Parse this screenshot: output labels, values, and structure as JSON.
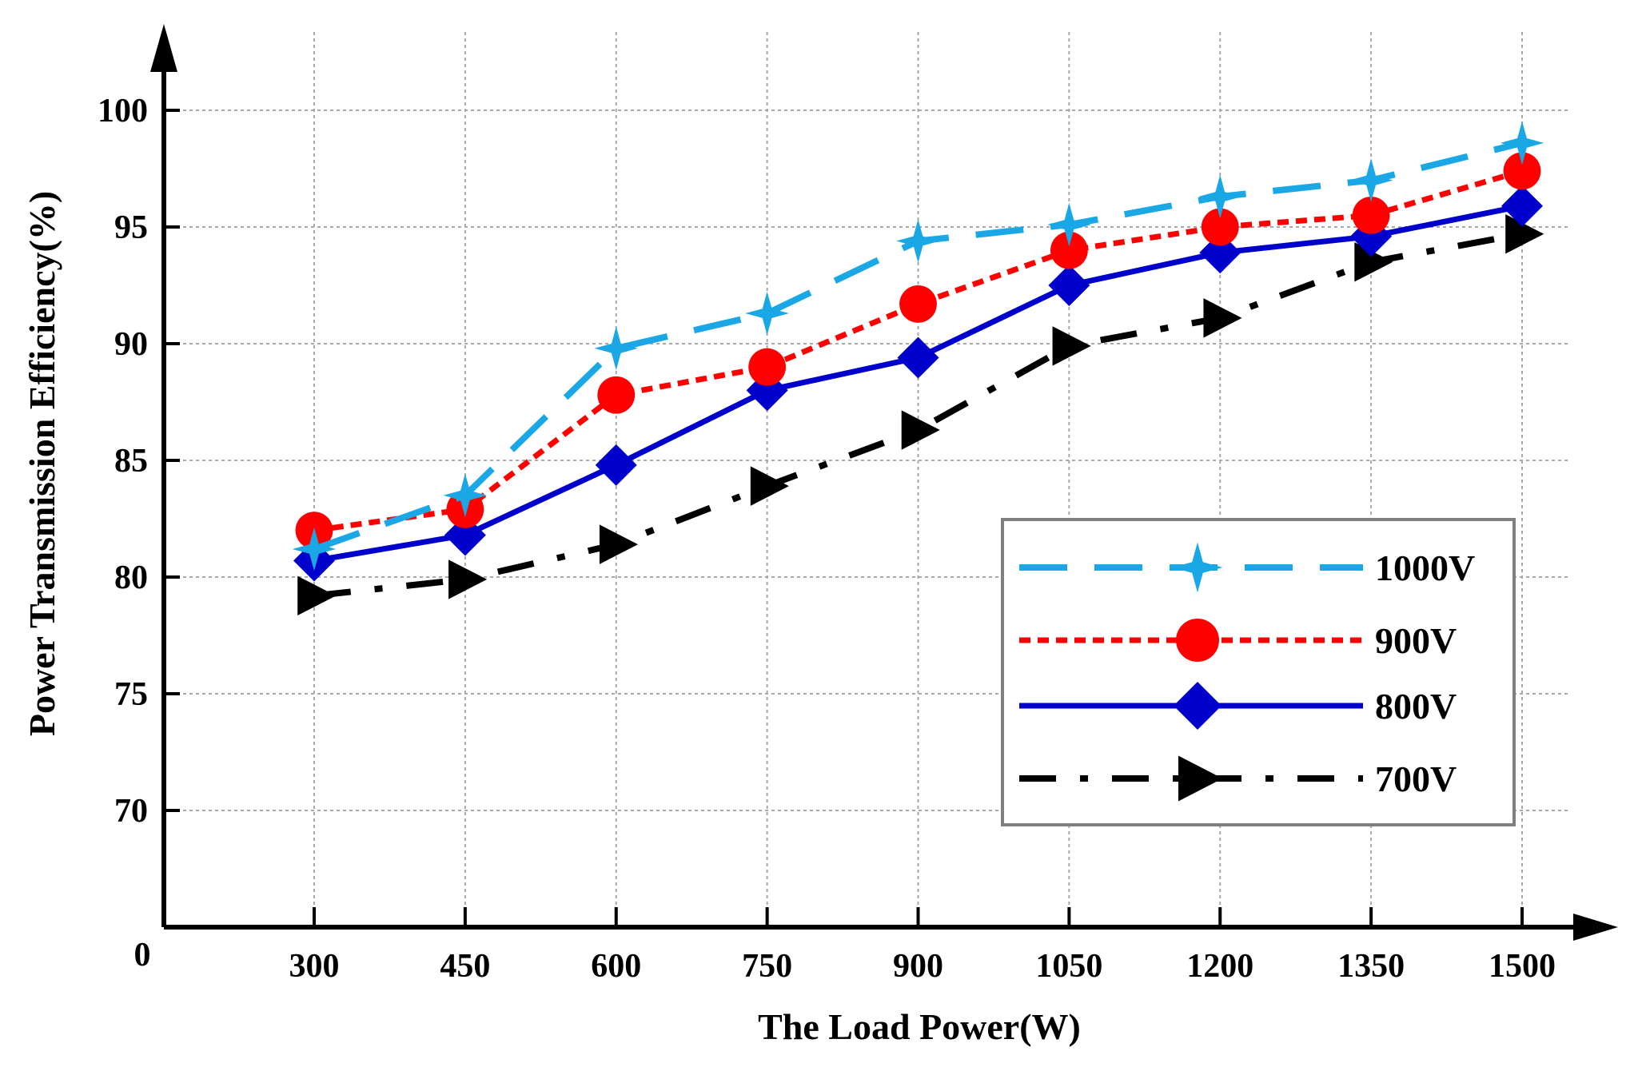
{
  "chart_data": {
    "type": "line",
    "title": "",
    "xlabel": "The Load Power(W)",
    "ylabel": "Power Transmission Efficiency(%)",
    "origin_label": "0",
    "categories": [
      "300",
      "450",
      "600",
      "750",
      "900",
      "1050",
      "1200",
      "1350",
      "1500"
    ],
    "x": [
      300,
      450,
      600,
      750,
      900,
      1050,
      1200,
      1350,
      1500
    ],
    "yticks": [
      70,
      75,
      80,
      85,
      90,
      95,
      100
    ],
    "ylim": [
      65,
      103
    ],
    "grid": true,
    "legend_position": "bottom-right",
    "series": [
      {
        "name": "1000V",
        "color": "#1aa7e6",
        "dash": "long-dash",
        "marker": "star",
        "values": [
          81.2,
          83.5,
          89.8,
          91.3,
          94.4,
          95.1,
          96.3,
          97.0,
          98.6
        ]
      },
      {
        "name": "900V",
        "color": "#ff0000",
        "dash": "dotted",
        "marker": "circle",
        "values": [
          82.0,
          82.9,
          87.8,
          89.0,
          91.7,
          94.0,
          95.0,
          95.5,
          97.4
        ]
      },
      {
        "name": "800V",
        "color": "#0000cc",
        "dash": "solid",
        "marker": "diamond",
        "values": [
          80.7,
          81.8,
          84.8,
          88.0,
          89.4,
          92.5,
          93.9,
          94.6,
          95.9
        ]
      },
      {
        "name": "700V",
        "color": "#000000",
        "dash": "dash-dot",
        "marker": "triangle-right",
        "values": [
          79.2,
          79.9,
          81.4,
          83.9,
          86.3,
          89.9,
          91.1,
          93.5,
          94.7
        ]
      }
    ]
  }
}
